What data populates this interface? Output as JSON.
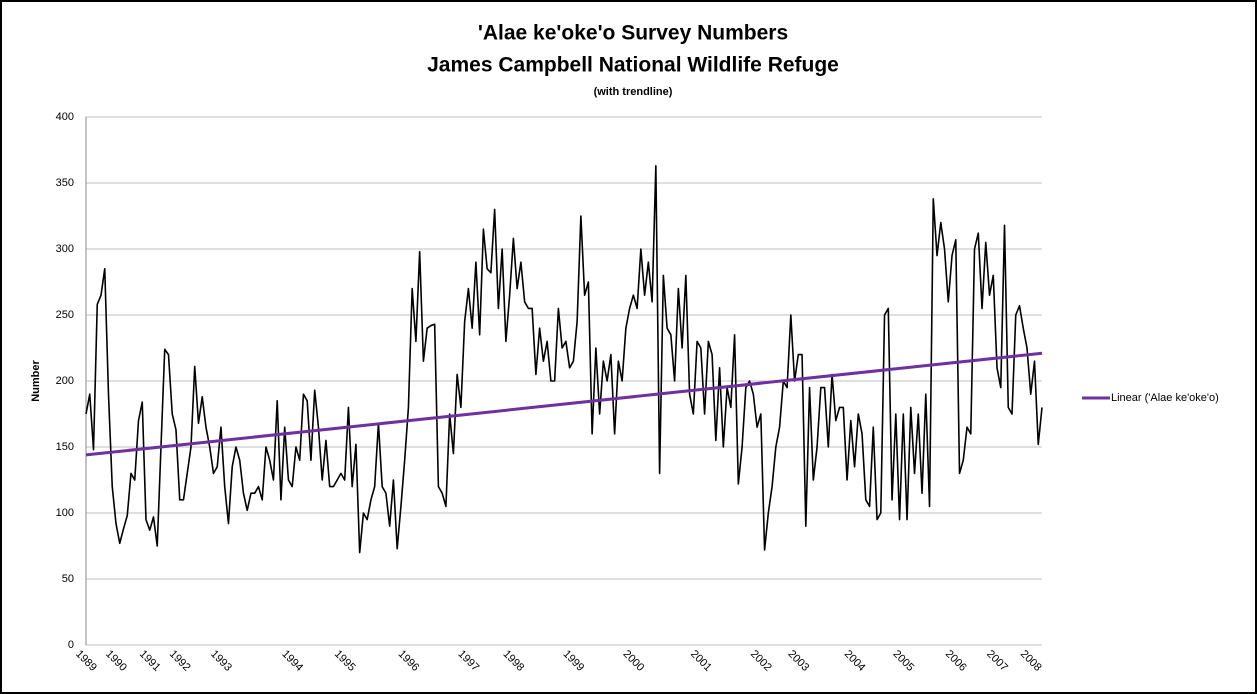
{
  "chart_data": {
    "type": "line",
    "title": "'Alae ke'oke'o Survey Numbers",
    "subtitle": "James Campbell National Wildlife Refuge",
    "note": "(with trendline)",
    "ylabel": "Number",
    "categories": [
      "1989",
      null,
      null,
      null,
      null,
      null,
      null,
      null,
      "1990",
      null,
      null,
      null,
      null,
      null,
      null,
      null,
      null,
      "1991",
      null,
      null,
      null,
      null,
      null,
      null,
      null,
      "1992",
      null,
      null,
      null,
      null,
      null,
      null,
      null,
      null,
      null,
      null,
      "1993",
      null,
      null,
      null,
      null,
      null,
      null,
      null,
      null,
      null,
      null,
      null,
      null,
      null,
      null,
      null,
      null,
      null,
      null,
      "1994",
      null,
      null,
      null,
      null,
      null,
      null,
      null,
      null,
      null,
      null,
      null,
      null,
      null,
      "1995",
      null,
      null,
      null,
      null,
      null,
      null,
      null,
      null,
      null,
      null,
      null,
      null,
      null,
      null,
      null,
      null,
      "1996",
      null,
      null,
      null,
      null,
      null,
      null,
      null,
      null,
      null,
      null,
      null,
      null,
      null,
      null,
      null,
      "1997",
      null,
      null,
      null,
      null,
      null,
      null,
      null,
      null,
      null,
      null,
      null,
      "1998",
      null,
      null,
      null,
      null,
      null,
      null,
      null,
      null,
      null,
      null,
      null,
      null,
      null,
      null,
      null,
      "1999",
      null,
      null,
      null,
      null,
      null,
      null,
      null,
      null,
      null,
      null,
      null,
      null,
      null,
      null,
      null,
      "2000",
      null,
      null,
      null,
      null,
      null,
      null,
      null,
      null,
      null,
      null,
      null,
      null,
      null,
      null,
      null,
      null,
      null,
      "2001",
      null,
      null,
      null,
      null,
      null,
      null,
      null,
      null,
      null,
      null,
      null,
      null,
      null,
      null,
      null,
      "2002",
      null,
      null,
      null,
      null,
      null,
      null,
      null,
      null,
      null,
      "2003",
      null,
      null,
      null,
      null,
      null,
      null,
      null,
      null,
      null,
      null,
      null,
      null,
      null,
      null,
      "2004",
      null,
      null,
      null,
      null,
      null,
      null,
      null,
      null,
      null,
      null,
      null,
      null,
      "2005",
      null,
      null,
      null,
      null,
      null,
      null,
      null,
      null,
      null,
      null,
      null,
      null,
      null,
      "2006",
      null,
      null,
      null,
      null,
      null,
      null,
      null,
      null,
      null,
      null,
      "2007",
      null,
      null,
      null,
      null,
      null,
      null,
      null,
      null,
      "2008",
      null,
      null,
      null
    ],
    "series": [
      {
        "color": "#000000",
        "values": [
          175,
          190,
          148,
          258,
          265,
          285,
          190,
          120,
          92,
          77,
          88,
          98,
          130,
          125,
          170,
          184,
          95,
          87,
          97,
          75,
          150,
          224,
          220,
          175,
          163,
          110,
          110,
          130,
          150,
          211,
          168,
          188,
          165,
          150,
          130,
          135,
          165,
          120,
          92,
          135,
          150,
          140,
          115,
          102,
          115,
          115,
          120,
          110,
          150,
          140,
          125,
          185,
          110,
          165,
          125,
          120,
          150,
          140,
          190,
          185,
          140,
          193,
          165,
          125,
          155,
          120,
          120,
          125,
          130,
          125,
          180,
          120,
          152,
          70,
          100,
          95,
          110,
          120,
          168,
          120,
          115,
          90,
          125,
          73,
          105,
          140,
          180,
          270,
          230,
          298,
          215,
          240,
          242,
          243,
          120,
          115,
          105,
          175,
          145,
          205,
          180,
          245,
          270,
          240,
          290,
          235,
          315,
          285,
          282,
          330,
          255,
          300,
          230,
          265,
          308,
          270,
          290,
          260,
          255,
          255,
          205,
          240,
          215,
          230,
          200,
          200,
          255,
          225,
          230,
          210,
          215,
          245,
          325,
          265,
          275,
          160,
          225,
          175,
          215,
          200,
          220,
          160,
          215,
          200,
          240,
          255,
          265,
          255,
          300,
          265,
          290,
          260,
          363,
          130,
          280,
          240,
          235,
          200,
          270,
          225,
          280,
          190,
          175,
          230,
          225,
          175,
          230,
          220,
          155,
          210,
          150,
          195,
          180,
          235,
          122,
          150,
          195,
          200,
          190,
          165,
          175,
          72,
          100,
          120,
          150,
          165,
          200,
          195,
          250,
          200,
          220,
          220,
          90,
          195,
          125,
          150,
          195,
          195,
          150,
          205,
          170,
          180,
          180,
          125,
          170,
          135,
          175,
          160,
          110,
          105,
          165,
          95,
          100,
          250,
          255,
          110,
          175,
          95,
          175,
          95,
          180,
          130,
          175,
          115,
          190,
          105,
          338,
          295,
          320,
          300,
          260,
          295,
          307,
          130,
          140,
          165,
          160,
          300,
          312,
          255,
          305,
          265,
          280,
          210,
          195,
          318,
          180,
          175,
          250,
          257,
          240,
          225,
          190,
          215,
          152,
          180
        ]
      }
    ],
    "trendline": {
      "name": "Linear ('Alae ke'oke'o)",
      "color": "#7030a0",
      "values": [
        144,
        221
      ]
    },
    "ylim": [
      0,
      400
    ],
    "yticks": [
      0,
      50,
      100,
      150,
      200,
      250,
      300,
      350,
      400
    ],
    "grid": true
  }
}
